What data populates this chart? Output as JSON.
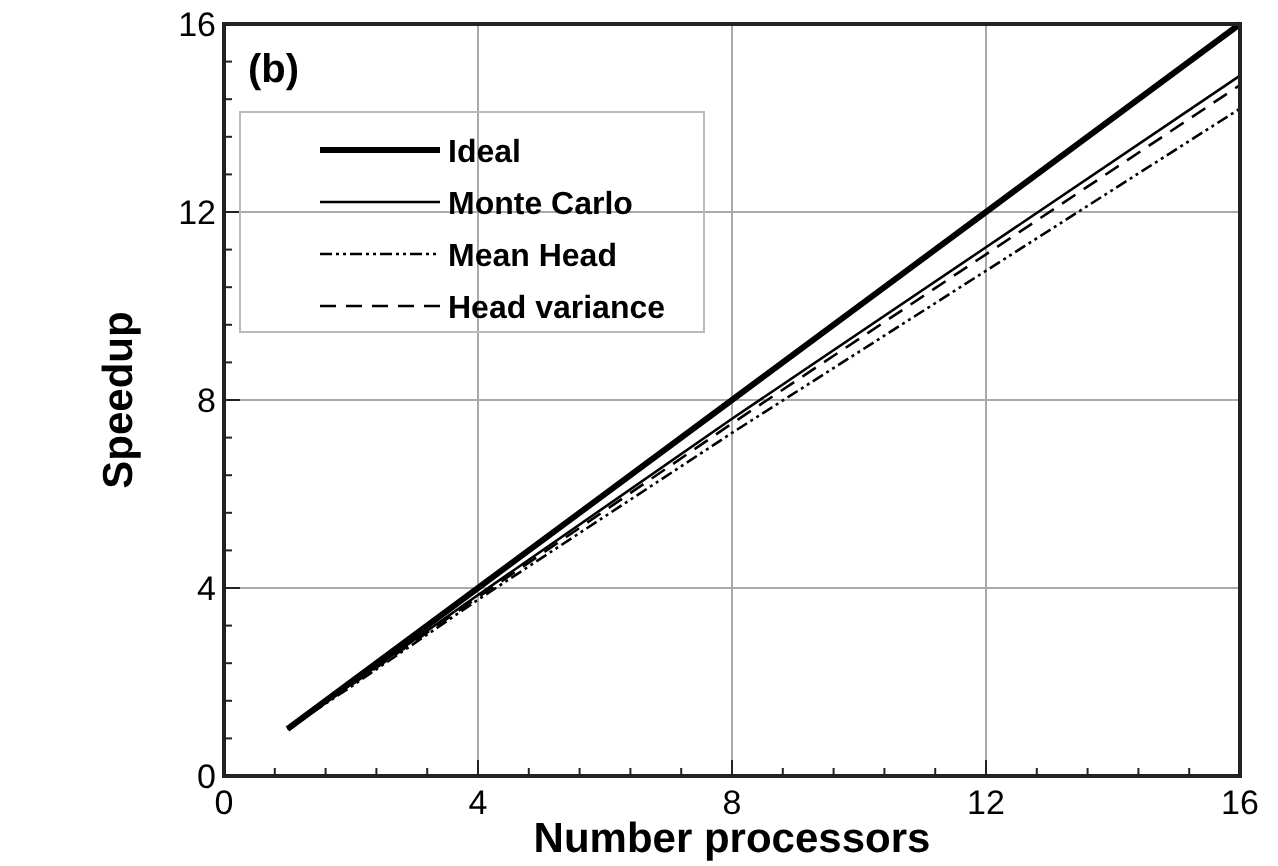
{
  "chart_data": {
    "type": "line",
    "xlabel": "Number processors",
    "ylabel": "Speedup",
    "annotations": [
      "(b)"
    ],
    "x": [
      1,
      2,
      4,
      8,
      12,
      16
    ],
    "series": [
      {
        "name": "Ideal",
        "color": "#000000",
        "values": [
          1,
          2,
          4,
          8,
          12,
          16
        ],
        "line_style": "solid"
      },
      {
        "name": "Monte Carlo",
        "color": "#000000",
        "values": [
          1,
          1.95,
          3.85,
          7.6,
          11.25,
          14.9
        ],
        "line_style": "solid"
      },
      {
        "name": "Mean Head",
        "color": "#000000",
        "values": [
          1,
          1.9,
          3.75,
          7.3,
          10.75,
          14.2
        ],
        "line_style": "dashdotdot"
      },
      {
        "name": "Head variance",
        "color": "#000000",
        "values": [
          1,
          1.93,
          3.8,
          7.5,
          11.1,
          14.7
        ],
        "line_style": "dashed"
      }
    ],
    "xlim": [
      0,
      16
    ],
    "ylim": [
      0,
      16
    ],
    "xticks": [
      0,
      {
        "value": 0.8,
        "label": null
      },
      {
        "value": 1.6,
        "label": null
      },
      {
        "value": 2.4,
        "label": null
      },
      {
        "value": 3.2,
        "label": null
      },
      4,
      {
        "value": 4.8,
        "label": null
      },
      {
        "value": 5.6,
        "label": null
      },
      {
        "value": 6.4,
        "label": null
      },
      {
        "value": 7.2,
        "label": null
      },
      8,
      {
        "value": 8.8,
        "label": null
      },
      {
        "value": 9.6,
        "label": null
      },
      {
        "value": 10.4,
        "label": null
      },
      {
        "value": 11.2,
        "label": null
      },
      12,
      {
        "value": 12.8,
        "label": null
      },
      {
        "value": 13.6,
        "label": null
      },
      {
        "value": 14.4,
        "label": null
      },
      {
        "value": 15.2,
        "label": null
      },
      16
    ],
    "yticks": [
      0,
      {
        "value": 0.8,
        "label": null
      },
      {
        "value": 1.6,
        "label": null
      },
      {
        "value": 2.4,
        "label": null
      },
      {
        "value": 3.2,
        "label": null
      },
      4,
      {
        "value": 4.8,
        "label": null
      },
      {
        "value": 5.6,
        "label": null
      },
      {
        "value": 6.4,
        "label": null
      },
      {
        "value": 7.2,
        "label": null
      },
      8,
      {
        "value": 8.8,
        "label": null
      },
      {
        "value": 9.6,
        "label": null
      },
      {
        "value": 10.4,
        "label": null
      },
      {
        "value": 11.2,
        "label": null
      },
      12,
      {
        "value": 12.8,
        "label": null
      },
      {
        "value": 13.6,
        "label": null
      },
      {
        "value": 14.4,
        "label": null
      },
      {
        "value": 15.2,
        "label": null
      },
      16
    ],
    "grid": true,
    "legend": "top left"
  }
}
